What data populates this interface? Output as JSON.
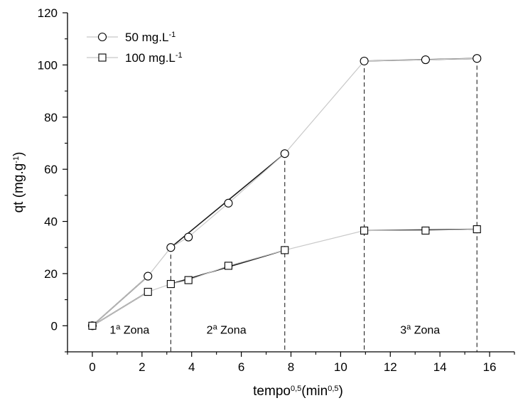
{
  "chart_data": {
    "type": "line",
    "title": "",
    "xlabel": {
      "base": "tempo",
      "sup": "0,5",
      "rest": "(min",
      "sup2": "0,5",
      "end": ")"
    },
    "ylabel": {
      "base": "qt (mg.g",
      "sup": "-1",
      "end": ")"
    },
    "xlim": [
      -1,
      17
    ],
    "ylim": [
      -10,
      120
    ],
    "xticks": [
      0,
      2,
      4,
      6,
      8,
      10,
      12,
      14,
      16
    ],
    "xtick_labels": [
      "0",
      "2",
      "4",
      "6",
      "8",
      "10",
      "12",
      "14",
      "16"
    ],
    "yticks": [
      0,
      20,
      40,
      60,
      80,
      100,
      120
    ],
    "ytick_labels": [
      "0",
      "20",
      "40",
      "60",
      "80",
      "100",
      "120"
    ],
    "grid": false,
    "legend_position": "top-left",
    "series": [
      {
        "name": {
          "base": "50 mg.L",
          "sup": "-1"
        },
        "marker": "circle",
        "line_color": "#c8c8c8",
        "x": [
          0,
          2.24,
          3.16,
          3.87,
          5.48,
          7.75,
          10.95,
          13.42,
          15.49
        ],
        "y": [
          0,
          19,
          30,
          34,
          47,
          66,
          101.5,
          102,
          102.5
        ]
      },
      {
        "name": {
          "base": "100 mg.L",
          "sup": "-1"
        },
        "marker": "square",
        "line_color": "#c8c8c8",
        "x": [
          0,
          2.24,
          3.16,
          3.87,
          5.48,
          7.75,
          10.95,
          13.42,
          15.49
        ],
        "y": [
          0,
          13,
          16,
          17.5,
          23,
          29,
          36.5,
          36.5,
          37
        ]
      }
    ],
    "fit_lines": [
      {
        "series": 0,
        "from": 0,
        "to": 1
      },
      {
        "series": 0,
        "from": 2,
        "to": 5
      },
      {
        "series": 0,
        "from": 6,
        "to": 8
      },
      {
        "series": 1,
        "from": 0,
        "to": 1
      },
      {
        "series": 1,
        "from": 2,
        "to": 5
      },
      {
        "series": 1,
        "from": 6,
        "to": 8
      }
    ],
    "zone_boundaries": [
      {
        "x": 3.16,
        "y_top": 30
      },
      {
        "x": 7.75,
        "y_top": 66
      },
      {
        "x": 10.95,
        "y_top": 101.5
      },
      {
        "x": 15.49,
        "y_top": 102.5
      }
    ],
    "zones": [
      {
        "base": "1",
        "sup": "a",
        "rest": " Zona",
        "x": 1.5,
        "y": 0
      },
      {
        "base": "2",
        "sup": "a",
        "rest": " Zona",
        "x": 5.4,
        "y": 0
      },
      {
        "base": "3",
        "sup": "a",
        "rest": " Zona",
        "x": 13.2,
        "y": 0
      }
    ]
  }
}
